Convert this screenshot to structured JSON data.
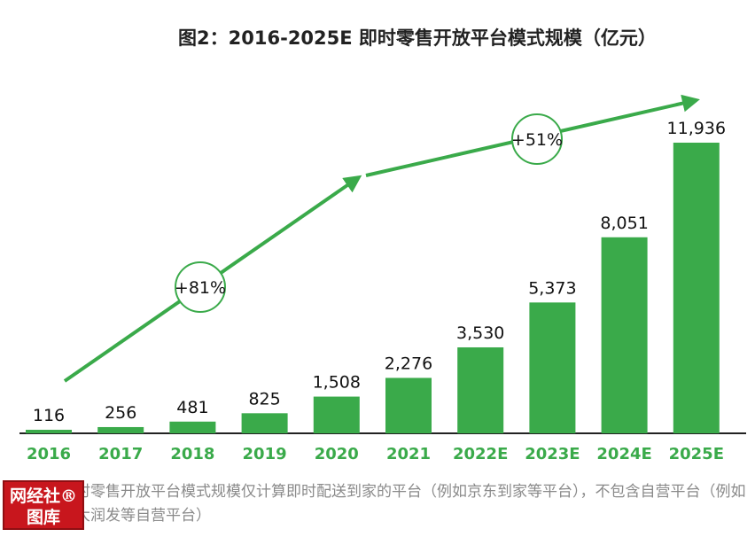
{
  "chart_data": {
    "type": "bar",
    "title": "图2：2016-2025E 即时零售开放平台模式规模（亿元）",
    "categories": [
      "2016",
      "2017",
      "2018",
      "2019",
      "2020",
      "2021",
      "2022E",
      "2023E",
      "2024E",
      "2025E"
    ],
    "values": [
      116,
      256,
      481,
      825,
      1508,
      2276,
      3530,
      5373,
      8051,
      11936
    ],
    "value_labels": [
      "116",
      "256",
      "481",
      "825",
      "1,508",
      "2,276",
      "3,530",
      "5,373",
      "8,051",
      "11,936"
    ],
    "ylim": [
      0,
      11936
    ],
    "grid": false,
    "bar_color": "#3aaa4a",
    "growth_annotations": [
      {
        "label": "+81%",
        "from": "2016",
        "to": "2021"
      },
      {
        "label": "+51%",
        "from": "2022E",
        "to": "2025E"
      }
    ]
  },
  "colors": {
    "bar": "#3aaa4a",
    "category_text": "#3aaa4a",
    "arrow": "#3aaa4a",
    "title": "#222222"
  },
  "note": "注：即时零售开放平台模式规模仅计算即时配送到家的平台（例如京东到家等平台），不包含自营平台（例如盒马、大润发等自营平台）",
  "watermark": {
    "line1": "网经社®",
    "line2": "图库"
  }
}
